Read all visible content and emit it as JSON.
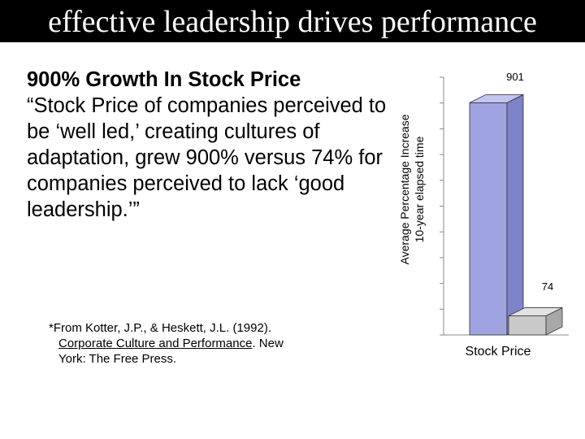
{
  "slide": {
    "title": "effective leadership drives performance",
    "headline": "900% Growth In Stock Price",
    "quote": "“Stock Price of companies perceived to be ‘well led,’ creating cultures of adaptation, grew 900% versus 74% for companies perceived to lack ‘good leadership.’”",
    "citation": {
      "line1": "*From Kotter, J.P., & Heskett, J.L. (1992).",
      "book": "Corporate Culture and Performance",
      "line2_rest": ".  New",
      "line3": "York:  The Free Press."
    }
  },
  "chart_data": {
    "type": "bar",
    "categories": [
      "Stock Price"
    ],
    "series": [
      {
        "values": [
          901
        ],
        "color": "#9fa3e0"
      },
      {
        "values": [
          74
        ],
        "color": "#c9c9c9"
      }
    ],
    "data_labels": [
      "901",
      "74"
    ],
    "ylabel_line1": "Average Percentage Increase",
    "ylabel_line2": "10-year elapsed time",
    "ylim": [
      0,
      1000
    ],
    "grid": false,
    "legend": "none"
  }
}
